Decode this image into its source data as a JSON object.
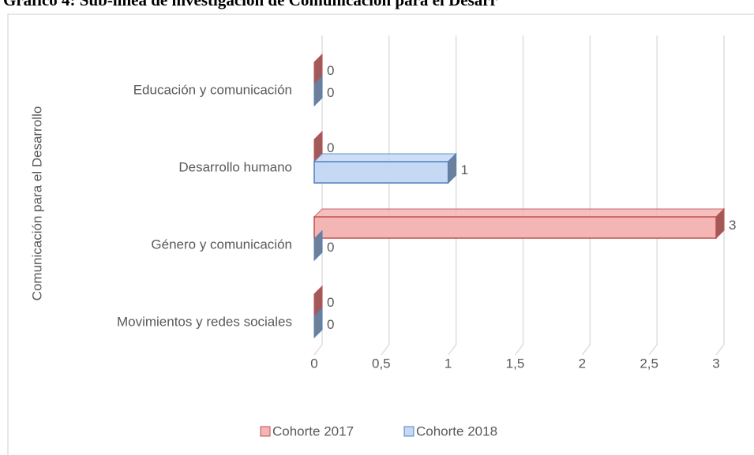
{
  "chart_data": {
    "type": "bar",
    "orientation": "horizontal",
    "title": "Gráfico 4: Sub-línea de investigación de Comunicación para el Desarr",
    "y_label": "Comunicación para el Desarrollo",
    "categories": [
      "Educación y comunicación",
      "Desarrollo humano",
      "Género y comunicación",
      "Movimientos y redes sociales"
    ],
    "series": [
      {
        "name": "Cohorte 2017",
        "color": "#f4b5b5",
        "values": [
          0,
          0,
          3,
          0
        ]
      },
      {
        "name": "Cohorte 2018",
        "color": "#c5d9f5",
        "values": [
          0,
          1,
          0,
          0
        ]
      }
    ],
    "xlim": [
      0,
      3
    ],
    "xticks": [
      0,
      {
        "value": 0.5,
        "label": "0,5"
      },
      1,
      {
        "value": 1.5,
        "label": "1,5"
      },
      2,
      {
        "value": 2.5,
        "label": "2,5"
      },
      3
    ],
    "grid": true,
    "legend": "bottom"
  }
}
